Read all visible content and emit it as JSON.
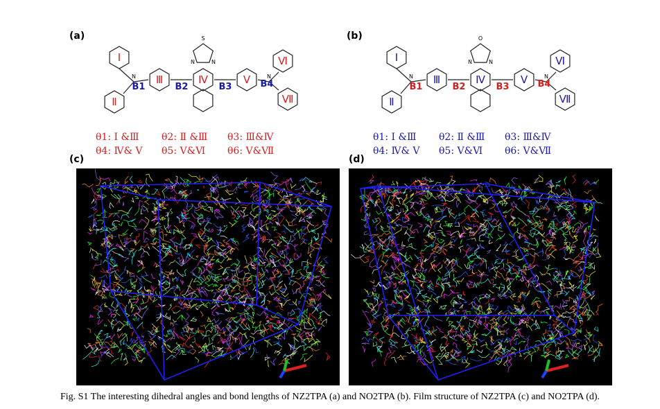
{
  "molecules": [
    {
      "label": "(a)",
      "rings": [
        "Ⅰ",
        "Ⅱ",
        "Ⅲ",
        "Ⅳ",
        "Ⅴ",
        "Ⅵ",
        "Ⅶ"
      ],
      "bonds": [
        "B1",
        "B2",
        "B3",
        "B4"
      ],
      "atoms": [
        "N",
        "N",
        "N",
        "N",
        "S"
      ],
      "dihedrals": [
        "θ1: Ⅰ &Ⅲ",
        "θ2: Ⅱ &Ⅲ",
        "θ3: Ⅲ&Ⅳ",
        "θ4: Ⅳ& Ⅴ",
        "θ5: Ⅴ&Ⅵ",
        "θ6: Ⅴ&Ⅶ"
      ]
    },
    {
      "label": "(b)",
      "rings": [
        "Ⅰ",
        "Ⅱ",
        "Ⅲ",
        "Ⅳ",
        "Ⅴ",
        "Ⅵ",
        "Ⅶ"
      ],
      "bonds": [
        "B1",
        "B2",
        "B3",
        "B4"
      ],
      "atoms": [
        "N",
        "N",
        "N",
        "N",
        "O"
      ],
      "dihedrals": [
        "θ1: Ⅰ &Ⅲ",
        "θ2: Ⅱ &Ⅲ",
        "θ3: Ⅲ&Ⅳ",
        "θ4: Ⅳ& Ⅴ",
        "θ5: Ⅴ&Ⅵ",
        "θ6: Ⅴ&Ⅶ"
      ]
    }
  ],
  "films": [
    {
      "label": "(c)"
    },
    {
      "label": "(d)"
    }
  ],
  "caption": "Fig. S1 The interesting dihedral angles and bond lengths of NZ2TPA (a) and NO2TPA (b). Film structure of NZ2TPA (c) and NO2TPA (d)."
}
